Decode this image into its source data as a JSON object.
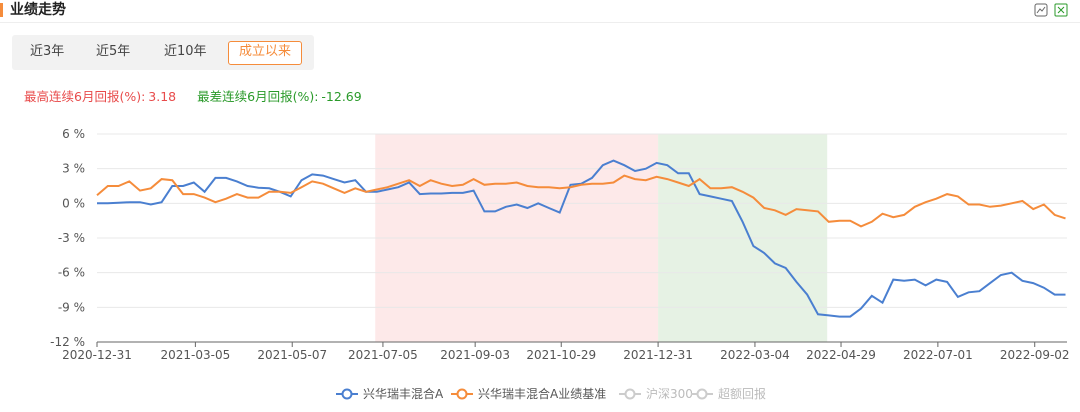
{
  "header": {
    "title": "业绩走势"
  },
  "tabs": {
    "items": [
      "近3年",
      "近5年",
      "近10年",
      "成立以来"
    ],
    "active": 3
  },
  "stats": {
    "best_label": "最高连续6月回报(%):",
    "best_value": 3.18,
    "worst_label": "最差连续6月回报(%):",
    "worst_value": -12.69
  },
  "chart_data": {
    "type": "line",
    "x": [
      "2020-12-31",
      "2021-01-07",
      "2021-01-14",
      "2021-01-21",
      "2021-01-28",
      "2021-02-04",
      "2021-02-11",
      "2021-02-18",
      "2021-02-25",
      "2021-03-04",
      "2021-03-11",
      "2021-03-18",
      "2021-03-25",
      "2021-04-01",
      "2021-04-08",
      "2021-04-15",
      "2021-04-22",
      "2021-04-29",
      "2021-05-06",
      "2021-05-13",
      "2021-05-20",
      "2021-05-27",
      "2021-06-03",
      "2021-06-10",
      "2021-06-17",
      "2021-06-24",
      "2021-07-01",
      "2021-07-08",
      "2021-07-15",
      "2021-07-22",
      "2021-07-29",
      "2021-08-05",
      "2021-08-12",
      "2021-08-19",
      "2021-08-26",
      "2021-09-02",
      "2021-09-09",
      "2021-09-16",
      "2021-09-23",
      "2021-09-30",
      "2021-10-07",
      "2021-10-14",
      "2021-10-21",
      "2021-10-28",
      "2021-11-04",
      "2021-11-11",
      "2021-11-18",
      "2021-11-25",
      "2021-12-02",
      "2021-12-09",
      "2021-12-16",
      "2021-12-23",
      "2021-12-30",
      "2022-01-06",
      "2022-01-13",
      "2022-01-20",
      "2022-01-27",
      "2022-02-03",
      "2022-02-10",
      "2022-02-17",
      "2022-02-24",
      "2022-03-03",
      "2022-03-10",
      "2022-03-17",
      "2022-03-24",
      "2022-03-31",
      "2022-04-07",
      "2022-04-14",
      "2022-04-21",
      "2022-04-28",
      "2022-05-05",
      "2022-05-12",
      "2022-05-19",
      "2022-05-26",
      "2022-06-02",
      "2022-06-09",
      "2022-06-16",
      "2022-06-23",
      "2022-06-30",
      "2022-07-07",
      "2022-07-14",
      "2022-07-21",
      "2022-07-28",
      "2022-08-04",
      "2022-08-11",
      "2022-08-18",
      "2022-08-25",
      "2022-09-01",
      "2022-09-08",
      "2022-09-15",
      "2022-09-22"
    ],
    "series": [
      {
        "name": "兴华瑞丰混合A",
        "color": "#4a7fd0",
        "values": [
          0.0,
          0.0,
          0.05,
          0.1,
          0.1,
          -0.1,
          0.1,
          1.5,
          1.5,
          1.8,
          1.0,
          2.2,
          2.2,
          1.9,
          1.5,
          1.35,
          1.3,
          1.0,
          0.6,
          2.0,
          2.5,
          2.4,
          2.1,
          1.8,
          2.0,
          1.0,
          1.0,
          1.2,
          1.4,
          1.8,
          0.8,
          0.85,
          0.85,
          0.9,
          0.9,
          1.1,
          -0.7,
          -0.7,
          -0.3,
          -0.1,
          -0.4,
          0.0,
          -0.4,
          -0.8,
          1.6,
          1.7,
          2.2,
          3.3,
          3.7,
          3.3,
          2.8,
          3.0,
          3.5,
          3.3,
          2.6,
          2.6,
          0.8,
          0.6,
          0.4,
          0.2,
          -1.6,
          -3.7,
          -4.3,
          -5.2,
          -5.6,
          -6.8,
          -7.9,
          -9.6,
          -9.7,
          -9.8,
          -9.8,
          -9.1,
          -8.0,
          -8.6,
          -6.6,
          -6.7,
          -6.6,
          -7.1,
          -6.6,
          -6.8,
          -8.1,
          -7.7,
          -7.6,
          -6.9,
          -6.2,
          -6.0,
          -6.7,
          -6.9,
          -7.3,
          -7.9,
          -7.9
        ]
      },
      {
        "name": "兴华瑞丰混合A业绩基准",
        "color": "#f58c3b",
        "values": [
          0.7,
          1.5,
          1.5,
          1.9,
          1.1,
          1.3,
          2.1,
          2.0,
          0.8,
          0.8,
          0.5,
          0.1,
          0.4,
          0.8,
          0.5,
          0.5,
          1.0,
          1.0,
          0.9,
          1.4,
          1.9,
          1.7,
          1.3,
          0.9,
          1.3,
          1.0,
          1.2,
          1.4,
          1.7,
          2.0,
          1.5,
          2.0,
          1.7,
          1.5,
          1.6,
          2.1,
          1.6,
          1.7,
          1.7,
          1.8,
          1.5,
          1.4,
          1.4,
          1.3,
          1.4,
          1.6,
          1.7,
          1.7,
          1.8,
          2.4,
          2.1,
          2.0,
          2.3,
          2.1,
          1.8,
          1.5,
          2.1,
          1.3,
          1.3,
          1.4,
          1.0,
          0.5,
          -0.4,
          -0.6,
          -1.0,
          -0.5,
          -0.6,
          -0.7,
          -1.6,
          -1.5,
          -1.5,
          -2.0,
          -1.6,
          -0.9,
          -1.2,
          -1.0,
          -0.3,
          0.1,
          0.4,
          0.8,
          0.6,
          -0.1,
          -0.1,
          -0.3,
          -0.2,
          0.0,
          0.2,
          -0.5,
          -0.1,
          -1.0,
          -1.3
        ]
      }
    ],
    "legend_disabled": [
      "沪深300",
      "超额回报"
    ],
    "bands": [
      {
        "start": "2021-06-30",
        "end": "2021-12-31",
        "color": "#fde9e9"
      },
      {
        "start": "2021-12-31",
        "end": "2022-04-20",
        "color": "#e6f2e4"
      }
    ],
    "xlim": [
      "2020-12-31",
      "2022-09-23"
    ],
    "xticks": [
      "2020-12-31",
      "2021-03-05",
      "2021-05-07",
      "2021-07-05",
      "2021-09-03",
      "2021-10-29",
      "2021-12-31",
      "2022-03-04",
      "2022-04-29",
      "2022-07-01",
      "2022-09-02"
    ],
    "ylim": [
      -12,
      6
    ],
    "yticks": [
      {
        "value": -12,
        "label": "-12 %"
      },
      {
        "value": -9,
        "label": "-9 %"
      },
      {
        "value": -6,
        "label": "-6 %"
      },
      {
        "value": -3,
        "label": "-3 %"
      },
      {
        "value": 0,
        "label": "0 %"
      },
      {
        "value": 3,
        "label": "3 %"
      },
      {
        "value": 6,
        "label": "6 %"
      }
    ],
    "grid": true
  }
}
